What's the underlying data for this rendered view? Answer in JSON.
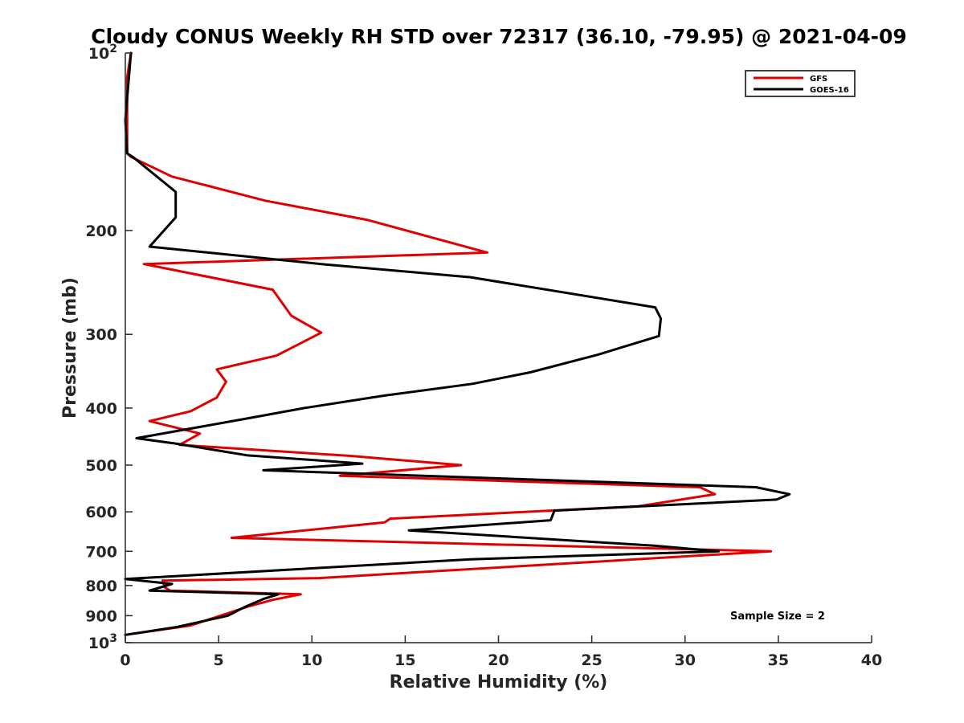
{
  "chart_data": {
    "type": "line",
    "title": "Cloudy CONUS Weekly RH STD over 72317 (36.10, -79.95) @ 2021-04-09",
    "xlabel": "Relative Humidity (%)",
    "ylabel": "Pressure (mb)",
    "xlim": [
      0,
      40
    ],
    "ylim": [
      100,
      1000
    ],
    "y_scale": "log",
    "y_reversed": true,
    "grid": false,
    "legend_position": "top-right",
    "xticks": [
      "0",
      "5",
      "10",
      "15",
      "20",
      "25",
      "30",
      "35",
      "40"
    ],
    "yticks": [
      {
        "value": 100,
        "label": "10",
        "sup": "2"
      },
      {
        "value": 200,
        "label": "200",
        "sup": ""
      },
      {
        "value": 300,
        "label": "300",
        "sup": ""
      },
      {
        "value": 400,
        "label": "400",
        "sup": ""
      },
      {
        "value": 500,
        "label": "500",
        "sup": ""
      },
      {
        "value": 600,
        "label": "600",
        "sup": ""
      },
      {
        "value": 700,
        "label": "700",
        "sup": ""
      },
      {
        "value": 800,
        "label": "800",
        "sup": ""
      },
      {
        "value": 900,
        "label": "900",
        "sup": ""
      },
      {
        "value": 1000,
        "label": "10",
        "sup": "3"
      }
    ],
    "annotation": "Sample Size = 2",
    "series": [
      {
        "name": "GFS",
        "color": "#e00000",
        "points": [
          [
            0.3,
            100
          ],
          [
            0.1,
            110
          ],
          [
            0.1,
            130
          ],
          [
            0.1,
            148
          ],
          [
            0.3,
            150
          ],
          [
            2.5,
            162
          ],
          [
            7.5,
            178
          ],
          [
            13.0,
            192
          ],
          [
            19.4,
            218
          ],
          [
            1.0,
            228
          ],
          [
            7.9,
            252
          ],
          [
            8.9,
            279
          ],
          [
            10.5,
            298
          ],
          [
            8.1,
            326
          ],
          [
            4.9,
            344
          ],
          [
            5.4,
            361
          ],
          [
            4.9,
            384
          ],
          [
            3.5,
            405
          ],
          [
            1.3,
            421
          ],
          [
            4.0,
            442
          ],
          [
            2.9,
            462
          ],
          [
            12.0,
            482
          ],
          [
            18.0,
            500
          ],
          [
            11.5,
            521
          ],
          [
            30.8,
            545
          ],
          [
            31.6,
            560
          ],
          [
            27.5,
            587
          ],
          [
            14.2,
            616
          ],
          [
            13.9,
            625
          ],
          [
            5.7,
            664
          ],
          [
            34.6,
            700
          ],
          [
            10.4,
            777
          ],
          [
            2.0,
            785
          ],
          [
            2.1,
            805
          ],
          [
            2.4,
            816
          ],
          [
            9.4,
            828
          ],
          [
            7.9,
            846
          ],
          [
            6.5,
            870
          ],
          [
            5.8,
            885
          ],
          [
            3.5,
            935
          ],
          [
            0,
            970
          ]
        ]
      },
      {
        "name": "GOES-16",
        "color": "#000000",
        "points": [
          [
            0.3,
            100
          ],
          [
            0,
            130
          ],
          [
            0.1,
            148
          ],
          [
            0.4,
            150
          ],
          [
            2.7,
            172
          ],
          [
            2.7,
            190
          ],
          [
            1.3,
            213
          ],
          [
            10.5,
            228
          ],
          [
            18.5,
            240
          ],
          [
            28.4,
            270
          ],
          [
            28.7,
            282
          ],
          [
            28.6,
            302
          ],
          [
            25.3,
            325
          ],
          [
            21.7,
            348
          ],
          [
            18.6,
            364
          ],
          [
            13.9,
            381
          ],
          [
            9.6,
            400
          ],
          [
            6.3,
            418
          ],
          [
            0.6,
            450
          ],
          [
            2.8,
            460
          ],
          [
            6.5,
            481
          ],
          [
            12.7,
            497
          ],
          [
            7.4,
            510
          ],
          [
            33.8,
            545
          ],
          [
            35.6,
            560
          ],
          [
            34.9,
            572
          ],
          [
            23.0,
            597
          ],
          [
            22.8,
            620
          ],
          [
            15.2,
            645
          ],
          [
            28.4,
            685
          ],
          [
            31.8,
            700
          ],
          [
            18.5,
            722
          ],
          [
            0,
            780
          ],
          [
            2.5,
            795
          ],
          [
            1.3,
            816
          ],
          [
            8.2,
            828
          ],
          [
            7.4,
            843
          ],
          [
            6.4,
            870
          ],
          [
            5.5,
            900
          ],
          [
            2.8,
            940
          ],
          [
            0,
            970
          ]
        ]
      }
    ]
  }
}
